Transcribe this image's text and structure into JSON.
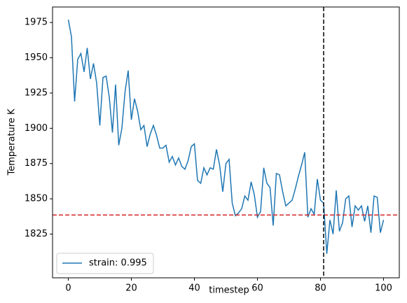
{
  "chart_data": {
    "type": "line",
    "xlabel": "timestep",
    "ylabel": "Temperature K",
    "x": [
      0,
      1,
      2,
      3,
      4,
      5,
      6,
      7,
      8,
      9,
      10,
      11,
      12,
      13,
      14,
      15,
      16,
      17,
      18,
      19,
      20,
      21,
      22,
      23,
      24,
      25,
      26,
      27,
      28,
      29,
      30,
      31,
      32,
      33,
      34,
      35,
      36,
      37,
      38,
      39,
      40,
      41,
      42,
      43,
      44,
      45,
      46,
      47,
      48,
      49,
      50,
      51,
      52,
      53,
      54,
      55,
      56,
      57,
      58,
      59,
      60,
      61,
      62,
      63,
      64,
      65,
      66,
      67,
      68,
      69,
      70,
      71,
      72,
      73,
      74,
      75,
      76,
      77,
      78,
      79,
      80,
      81,
      82,
      83,
      84,
      85,
      86,
      87,
      88,
      89,
      90,
      91,
      92,
      93,
      94,
      95,
      96,
      97,
      98,
      99,
      100
    ],
    "series": [
      {
        "name": "strain: 0.995",
        "color": "#1f77b4",
        "values": [
          1977,
          1965,
          1919,
          1949,
          1953,
          1940,
          1957,
          1935,
          1946,
          1932,
          1902,
          1936,
          1937,
          1922,
          1897,
          1931,
          1888,
          1900,
          1926,
          1941,
          1906,
          1921,
          1912,
          1899,
          1902,
          1887,
          1896,
          1902,
          1895,
          1886,
          1886,
          1888,
          1876,
          1880,
          1874,
          1879,
          1873,
          1871,
          1877,
          1887,
          1889,
          1863,
          1861,
          1872,
          1867,
          1872,
          1871,
          1885,
          1874,
          1855,
          1875,
          1878,
          1847,
          1838,
          1840,
          1843,
          1852,
          1849,
          1862,
          1853,
          1837,
          1841,
          1872,
          1861,
          1858,
          1831,
          1868,
          1867,
          1855,
          1845,
          1847,
          1849,
          1857,
          1866,
          1874,
          1883,
          1837,
          1843,
          1839,
          1864,
          1849,
          1847,
          1811,
          1835,
          1825,
          1856,
          1827,
          1833,
          1850,
          1852,
          1830,
          1845,
          1842,
          1845,
          1834,
          1845,
          1826,
          1852,
          1851,
          1826,
          1835
        ]
      }
    ],
    "hline": {
      "value": 1838.5,
      "color": "#d62728"
    },
    "vline": {
      "value": 81,
      "color": "#000000"
    },
    "xlim": [
      -5,
      105
    ],
    "ylim": [
      1794,
      1986
    ],
    "xticks": [
      0,
      20,
      40,
      60,
      80,
      100
    ],
    "yticks": [
      1825,
      1850,
      1875,
      1900,
      1925,
      1950,
      1975
    ],
    "legend": "lower left",
    "grid": false
  }
}
